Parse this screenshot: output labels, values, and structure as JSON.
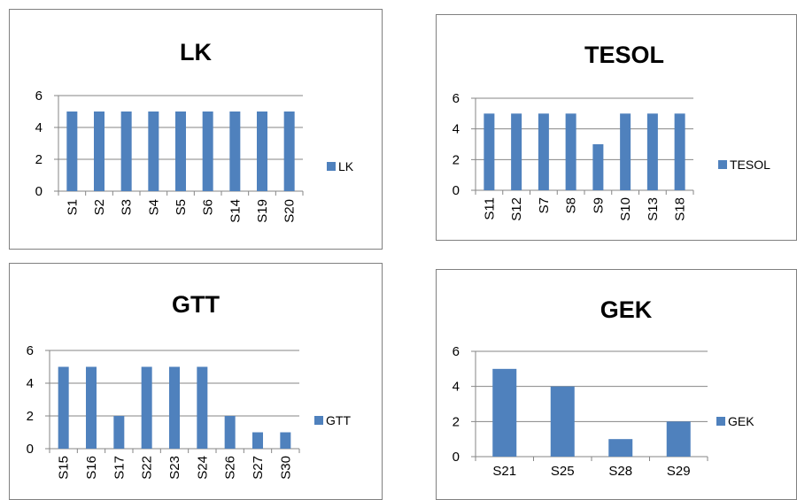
{
  "chart_data": [
    {
      "type": "bar",
      "title": "LK",
      "categories": [
        "S1",
        "S2",
        "S3",
        "S4",
        "S5",
        "S6",
        "S14",
        "S19",
        "S20"
      ],
      "series": [
        {
          "name": "LK",
          "values": [
            5,
            5,
            5,
            5,
            5,
            5,
            5,
            5,
            5
          ]
        }
      ],
      "yticks": [
        "0",
        "2",
        "4",
        "6"
      ],
      "ylim": [
        0,
        6
      ],
      "grid": true,
      "legend": "right"
    },
    {
      "type": "bar",
      "title": "TESOL",
      "categories": [
        "S11",
        "S12",
        "S7",
        "S8",
        "S9",
        "S10",
        "S13",
        "S18"
      ],
      "series": [
        {
          "name": "TESOL",
          "values": [
            5,
            5,
            5,
            5,
            3,
            5,
            5,
            5
          ]
        }
      ],
      "yticks": [
        "0",
        "2",
        "4",
        "6"
      ],
      "ylim": [
        0,
        6
      ],
      "grid": true,
      "legend": "right"
    },
    {
      "type": "bar",
      "title": "GTT",
      "categories": [
        "S15",
        "S16",
        "S17",
        "S22",
        "S23",
        "S24",
        "S26",
        "S27",
        "S30"
      ],
      "series": [
        {
          "name": "GTT",
          "values": [
            5,
            5,
            2,
            5,
            5,
            5,
            2,
            1,
            1
          ]
        }
      ],
      "yticks": [
        "0",
        "2",
        "4",
        "6"
      ],
      "ylim": [
        0,
        6
      ],
      "grid": true,
      "legend": "right"
    },
    {
      "type": "bar",
      "title": "GEK",
      "categories": [
        "S21",
        "S25",
        "S28",
        "S29"
      ],
      "series": [
        {
          "name": "GEK",
          "values": [
            5,
            4,
            1,
            2
          ]
        }
      ],
      "yticks": [
        "0",
        "2",
        "4",
        "6"
      ],
      "ylim": [
        0,
        6
      ],
      "grid": true,
      "legend": "right"
    }
  ],
  "colors": {
    "bar": "#4f81bd",
    "grid": "#868686",
    "axis": "#868686",
    "border": "#808080"
  }
}
